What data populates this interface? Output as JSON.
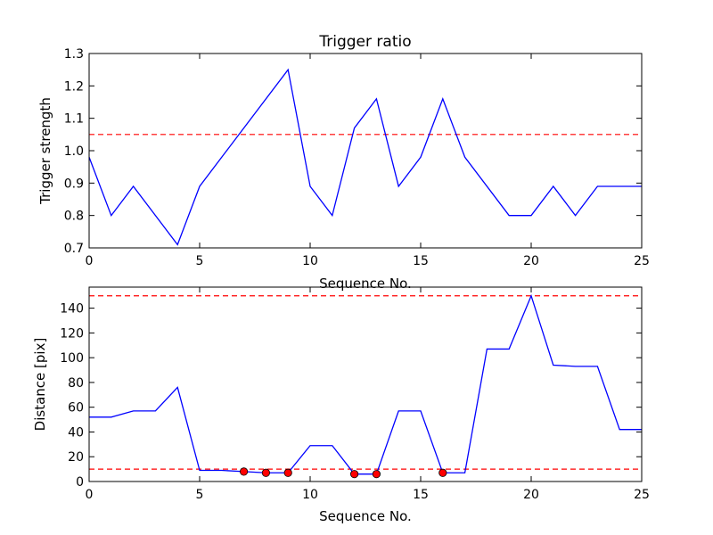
{
  "chart_data": [
    {
      "type": "line",
      "title": "Trigger ratio",
      "xlabel": "Sequence No.",
      "ylabel": "Trigger strength",
      "xlim": [
        0,
        25
      ],
      "ylim": [
        0.7,
        1.3
      ],
      "xticks": [
        "0",
        "5",
        "10",
        "15",
        "20",
        "25"
      ],
      "yticks": [
        "0.7",
        "0.8",
        "0.9",
        "1.0",
        "1.1",
        "1.2",
        "1.3"
      ],
      "series": [
        {
          "color": "#0000ff",
          "x": [
            0,
            1,
            2,
            4,
            5,
            9,
            10,
            11,
            12,
            13,
            14,
            15,
            16,
            17,
            19,
            20,
            21,
            22,
            23,
            25
          ],
          "y": [
            0.98,
            0.8,
            0.89,
            0.71,
            0.89,
            1.25,
            0.89,
            0.8,
            1.07,
            1.16,
            0.89,
            0.98,
            1.16,
            0.98,
            0.8,
            0.8,
            0.89,
            0.8,
            0.89,
            0.89
          ]
        }
      ],
      "hlines": [
        {
          "y": 1.05,
          "color": "#ff0000",
          "style": "dashed"
        }
      ]
    },
    {
      "type": "line",
      "title": "",
      "xlabel": "Sequence No.",
      "ylabel": "Distance [pix]",
      "xlim": [
        0,
        25
      ],
      "ylim": [
        0,
        157
      ],
      "xticks": [
        "0",
        "5",
        "10",
        "15",
        "20",
        "25"
      ],
      "yticks": [
        "0",
        "20",
        "40",
        "60",
        "80",
        "100",
        "120",
        "140"
      ],
      "series": [
        {
          "color": "#0000ff",
          "x": [
            0,
            1,
            2,
            3,
            4,
            5,
            6,
            7,
            8,
            9,
            10,
            11,
            12,
            13,
            14,
            15,
            16,
            17,
            18,
            19,
            20,
            21,
            22,
            23,
            24,
            25
          ],
          "y": [
            52,
            52,
            57,
            57,
            76,
            9,
            9,
            8,
            7,
            7,
            29,
            29,
            6,
            6,
            57,
            57,
            7,
            7,
            107,
            107,
            150,
            94,
            93,
            93,
            42,
            42
          ]
        }
      ],
      "markers": {
        "color": "#ff0000",
        "x": [
          7,
          8,
          9,
          12,
          13,
          16
        ],
        "y": [
          8,
          7,
          7,
          6,
          6,
          7
        ]
      },
      "hlines": [
        {
          "y": 150,
          "color": "#ff0000",
          "style": "dashed"
        },
        {
          "y": 10,
          "color": "#ff0000",
          "style": "dashed"
        }
      ]
    }
  ]
}
